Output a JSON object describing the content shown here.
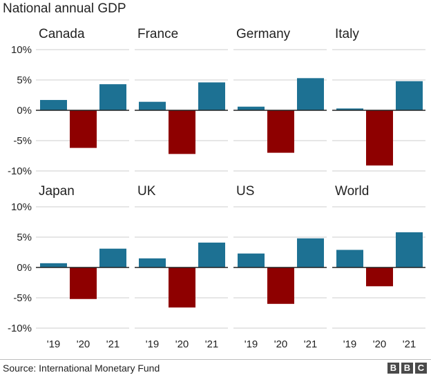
{
  "title": "National annual GDP",
  "source": "Source: International Monetary Fund",
  "logo": "BBC",
  "logo_letters": [
    "B",
    "B",
    "C"
  ],
  "colors": {
    "positive": "#1d7193",
    "negative": "#8e0000",
    "grid": "#cccccc",
    "zero": "#222222",
    "text": "#222222"
  },
  "chart_data": {
    "type": "bar",
    "title": "National annual GDP",
    "categories": [
      "'19",
      "'20",
      "'21"
    ],
    "ylim": [
      -10,
      10
    ],
    "yticks": [
      -10,
      -5,
      0,
      5,
      10
    ],
    "ytick_labels": [
      "-10%",
      "-5%",
      "0%",
      "5%",
      "10%"
    ],
    "grid": true,
    "panels": [
      {
        "name": "Canada",
        "values": [
          1.7,
          -6.2,
          4.3
        ]
      },
      {
        "name": "France",
        "values": [
          1.4,
          -7.2,
          4.6
        ]
      },
      {
        "name": "Germany",
        "values": [
          0.6,
          -7.0,
          5.3
        ]
      },
      {
        "name": "Italy",
        "values": [
          0.3,
          -9.1,
          4.8
        ]
      },
      {
        "name": "Japan",
        "values": [
          0.7,
          -5.2,
          3.1
        ]
      },
      {
        "name": "UK",
        "values": [
          1.5,
          -6.6,
          4.1
        ]
      },
      {
        "name": "US",
        "values": [
          2.3,
          -6.0,
          4.8
        ]
      },
      {
        "name": "World",
        "values": [
          2.9,
          -3.1,
          5.8
        ]
      }
    ]
  }
}
